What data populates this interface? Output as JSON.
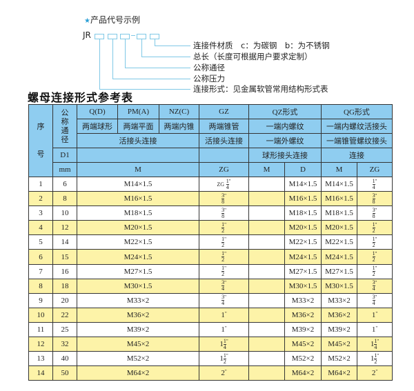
{
  "legend": {
    "star": "★",
    "heading": "产品代号示例",
    "code": "JR",
    "labels": [
      "连接件材质　c：为碳钢　b：为不锈钢",
      "总长（长度可根据用户要求定制）",
      "公称通径",
      "公称压力",
      "连接形式：见金属软管常用结构形式表"
    ]
  },
  "title": "螺母连接形式参考表",
  "table": {
    "h_seq": "序号",
    "h_dn": "公称通径",
    "h_qd": "Q(D)",
    "h_pm": "PM(A)",
    "h_nz": "NZ(C)",
    "h_gz": "GZ",
    "h_qz": "QZ形式",
    "h_qg": "QG形式",
    "r2_qd": "两端球形",
    "r2_pm": "两端平面",
    "r2_nz": "两端内锥",
    "r2_gz": "两端锥管",
    "r2_qz": "一端内螺纹",
    "r2_qg": "一端内螺纹活接头",
    "r3_a": "活接头连接",
    "r3_gz": "活接头连接",
    "r3_qz": "一端外螺纹",
    "r3_qg": "一端锥管螺纹接头",
    "r4_d1": "D1",
    "r4_qz": "球形接头连接",
    "r4_qg": "连接",
    "r5_mm": "mm",
    "r5_m": "M",
    "r5_zg": "ZG",
    "r5_qzm": "M",
    "r5_qzd": "D",
    "r5_qgm": "M",
    "r5_qgzg": "ZG",
    "rows": [
      {
        "n": "1",
        "d": "6",
        "m": "M14×1.5",
        "zg": {
          "p": "ZG",
          "w": "",
          "num": "1",
          "den": "4"
        },
        "qzd": "M14×1.5",
        "qgm": "M14×1.5",
        "qgzg": {
          "w": "",
          "num": "1",
          "den": "4"
        }
      },
      {
        "n": "2",
        "d": "8",
        "m": "M16×1.5",
        "zg": {
          "w": "",
          "num": "3",
          "den": "8"
        },
        "qzd": "M16×1.5",
        "qgm": "M16×1.5",
        "qgzg": {
          "w": "",
          "num": "3",
          "den": "8"
        }
      },
      {
        "n": "3",
        "d": "10",
        "m": "M18×1.5",
        "zg": {
          "w": "",
          "num": "3",
          "den": "8"
        },
        "qzd": "M18×1.5",
        "qgm": "M18×1.5",
        "qgzg": {
          "w": "",
          "num": "3",
          "den": "8"
        }
      },
      {
        "n": "4",
        "d": "12",
        "m": "M20×1.5",
        "zg": {
          "w": "",
          "num": "1",
          "den": "2"
        },
        "qzd": "M20×1.5",
        "qgm": "M20×1.5",
        "qgzg": {
          "w": "",
          "num": "1",
          "den": "2"
        }
      },
      {
        "n": "5",
        "d": "14",
        "m": "M22×1.5",
        "zg": {
          "w": "",
          "num": "1",
          "den": "2"
        },
        "qzd": "M22×1.5",
        "qgm": "M22×1.5",
        "qgzg": {
          "w": "",
          "num": "1",
          "den": "2"
        }
      },
      {
        "n": "6",
        "d": "15",
        "m": "M24×1.5",
        "zg": {
          "w": "",
          "num": "1",
          "den": "2"
        },
        "qzd": "M24×1.5",
        "qgm": "M24×1.5",
        "qgzg": {
          "w": "",
          "num": "1",
          "den": "2"
        }
      },
      {
        "n": "7",
        "d": "16",
        "m": "M27×1.5",
        "zg": {
          "w": "",
          "num": "1",
          "den": "2"
        },
        "qzd": "M27×1.5",
        "qgm": "M27×1.5",
        "qgzg": {
          "w": "",
          "num": "1",
          "den": "2"
        }
      },
      {
        "n": "8",
        "d": "18",
        "m": "M30×1.5",
        "zg": {
          "w": "",
          "num": "3",
          "den": "4"
        },
        "qzd": "M30×1.5",
        "qgm": "M30×1.5",
        "qgzg": {
          "w": "",
          "num": "3",
          "den": "4"
        }
      },
      {
        "n": "9",
        "d": "20",
        "m": "M33×2",
        "zg": {
          "w": "",
          "num": "3",
          "den": "4"
        },
        "qzd": "M33×2",
        "qgm": "M33×2",
        "qgzg": {
          "w": "",
          "num": "3",
          "den": "4"
        }
      },
      {
        "n": "10",
        "d": "22",
        "m": "M36×2",
        "zg": {
          "w": "1"
        },
        "qzd": "M36×2",
        "qgm": "M36×2",
        "qgzg": {
          "w": "1"
        }
      },
      {
        "n": "11",
        "d": "25",
        "m": "M39×2",
        "zg": {
          "w": "1"
        },
        "qzd": "M39×2",
        "qgm": "M39×2",
        "qgzg": {
          "w": "1"
        }
      },
      {
        "n": "12",
        "d": "32",
        "m": "M45×2",
        "zg": {
          "w": "1",
          "num": "1",
          "den": "4"
        },
        "qzd": "M45×2",
        "qgm": "M45×2",
        "qgzg": {
          "w": "1",
          "num": "1",
          "den": "4"
        }
      },
      {
        "n": "13",
        "d": "40",
        "m": "M52×2",
        "zg": {
          "w": "1",
          "num": "1",
          "den": "2"
        },
        "qzd": "M52×2",
        "qgm": "M52×2",
        "qgzg": {
          "w": "1",
          "num": "1",
          "den": "2"
        }
      },
      {
        "n": "14",
        "d": "50",
        "m": "M64×2",
        "zg": {
          "w": "2"
        },
        "qzd": "M64×2",
        "qgm": "M64×2",
        "qgzg": {
          "w": "2"
        }
      }
    ],
    "inch_mark": "\""
  },
  "colors": {
    "header_bg": "#8fcdf0",
    "row_alt_bg": "#fdf3a8",
    "accent": "#2a9fd6"
  }
}
